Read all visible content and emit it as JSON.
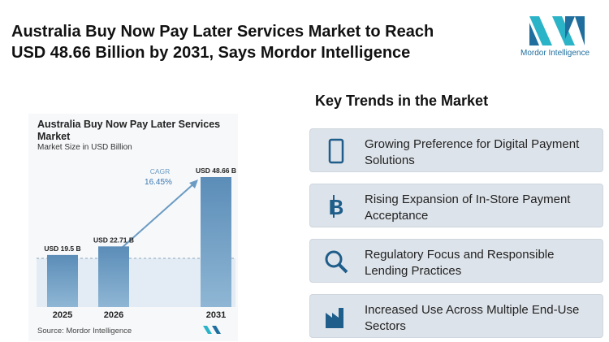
{
  "header": {
    "title_lines": [
      "Australia Buy Now Pay Later Services Market to Reach",
      "USD 48.66 Billion by 2031, Says Mordor Intelligence"
    ],
    "logo_text": "Mordor Intelligence"
  },
  "chart_data": {
    "type": "bar",
    "title": "Australia Buy Now Pay Later Services Market",
    "subtitle": "Market Size in USD Billion",
    "categories": [
      "2025",
      "2026",
      "2031"
    ],
    "values": [
      19.5,
      22.71,
      48.66
    ],
    "value_labels": [
      "USD 19.5 B",
      "USD 22.71 B",
      "USD 48.66 B"
    ],
    "color": "#6a9bc3",
    "annotation": {
      "label": "CAGR",
      "value": "16.45%"
    },
    "source": "Source: Mordor Intelligence"
  },
  "trends": {
    "title": "Key Trends in the Market",
    "items": [
      "Growing Preference for Digital Payment Solutions",
      "Rising Expansion of In-Store Payment Acceptance",
      "Regulatory Focus and Responsible Lending Practices",
      "Increased Use Across Multiple End-Use Sectors"
    ]
  }
}
